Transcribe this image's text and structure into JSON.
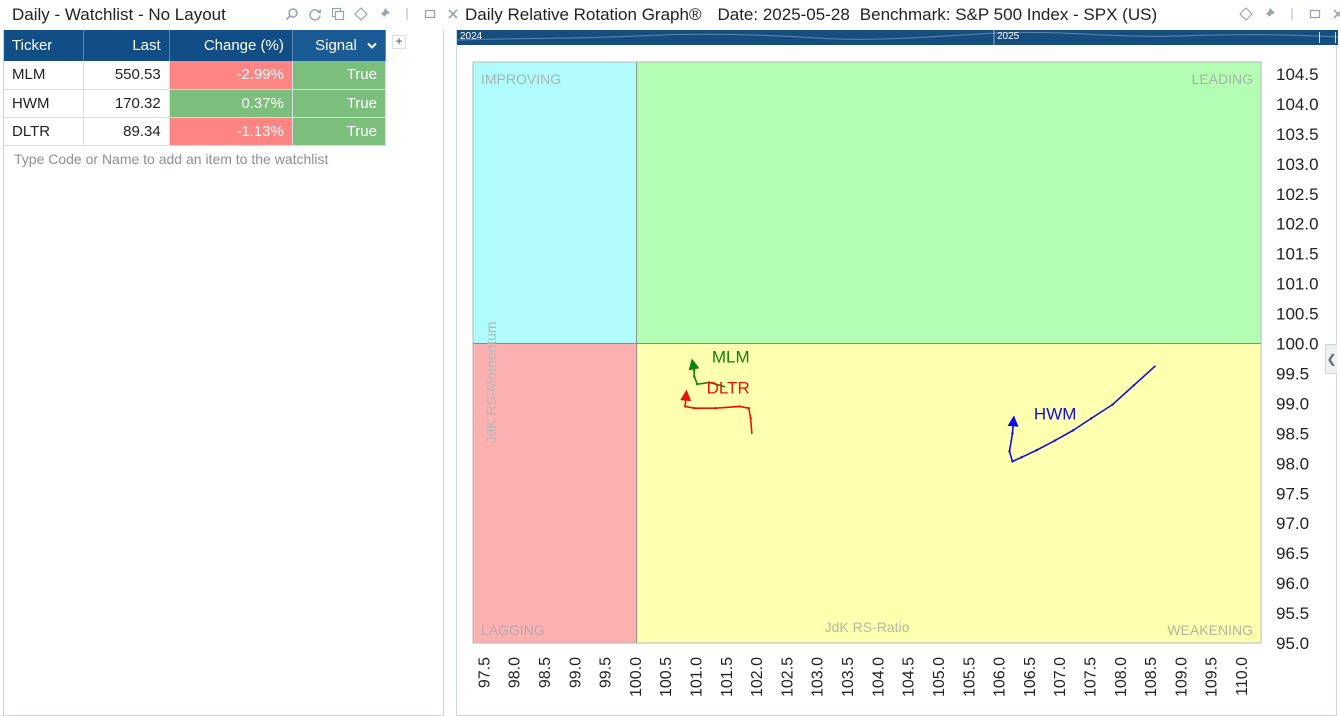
{
  "watchlist": {
    "title": "Daily - Watchlist - No Layout",
    "title_icons": [
      "search-icon",
      "refresh-icon",
      "copy-icon",
      "diamond-icon",
      "pin-icon",
      "detach-icon",
      "maximize-icon",
      "close-icon"
    ],
    "columns": {
      "ticker": "Ticker",
      "last": "Last",
      "change": "Change (%)",
      "signal": "Signal"
    },
    "rows": [
      {
        "ticker": "MLM",
        "last": "550.53",
        "change": "-2.99%",
        "signal": "True",
        "direction": "down"
      },
      {
        "ticker": "HWM",
        "last": "170.32",
        "change": "0.37%",
        "signal": "True",
        "direction": "up"
      },
      {
        "ticker": "DLTR",
        "last": "89.34",
        "change": "-1.13%",
        "signal": "True",
        "direction": "down"
      }
    ],
    "add_hint": "Type Code or Name to add an item to the watchlist",
    "add_column_symbol": "+"
  },
  "rrg": {
    "title": "Daily Relative Rotation Graph®",
    "date_label": "Date: 2025-05-28",
    "benchmark_label": "Benchmark: S&P 500 Index - SPX (US)",
    "title_icons": [
      "diamond-icon",
      "pin-icon",
      "maximize-icon",
      "close-icon"
    ],
    "timeline": {
      "start_year": "2024",
      "end_year": "2025"
    },
    "collapse_symbol": "❮"
  },
  "colors": {
    "header_blue": "#114e86",
    "negative": "#ff8585",
    "positive": "#7cbf7c",
    "improving": "#b0fcfc",
    "leading": "#b4feb4",
    "lagging": "#fdb0b0",
    "weakening": "#ffffb0"
  },
  "chart_data": {
    "type": "scatter",
    "title": "Daily Relative Rotation Graph®",
    "xlabel": "JdK RS-Ratio",
    "ylabel": "JdK RS-Momentum",
    "xlim": [
      97.3,
      110.3
    ],
    "ylim": [
      95.0,
      104.7
    ],
    "center": [
      100.0,
      100.0
    ],
    "x_ticks": [
      "97.5",
      "98.0",
      "98.5",
      "99.0",
      "99.5",
      "100.0",
      "100.5",
      "101.0",
      "101.5",
      "102.0",
      "102.5",
      "103.0",
      "103.5",
      "104.0",
      "104.5",
      "105.0",
      "105.5",
      "106.0",
      "106.5",
      "107.0",
      "107.5",
      "108.0",
      "108.5",
      "109.0",
      "109.5",
      "110.0"
    ],
    "y_ticks": [
      "104.5",
      "104.0",
      "103.5",
      "103.0",
      "102.5",
      "102.0",
      "101.5",
      "101.0",
      "100.5",
      "100.0",
      "99.5",
      "99.0",
      "98.5",
      "98.0",
      "97.5",
      "97.0",
      "96.5",
      "96.0",
      "95.5",
      "95.0"
    ],
    "quadrants": {
      "improving": "IMPROVING",
      "leading": "LEADING",
      "lagging": "LAGGING",
      "weakening": "WEAKENING"
    },
    "grid": false,
    "series": [
      {
        "name": "MLM",
        "color": "#108010",
        "x": [
          101.45,
          101.2,
          101.0,
          100.95,
          100.95,
          100.92
        ],
        "y": [
          99.28,
          99.35,
          99.32,
          99.45,
          99.55,
          99.7
        ]
      },
      {
        "name": "DLTR",
        "color": "#ee1010",
        "x": [
          101.9,
          101.88,
          101.85,
          101.7,
          101.3,
          100.95,
          100.8,
          100.82
        ],
        "y": [
          98.5,
          98.75,
          98.92,
          98.95,
          98.92,
          98.92,
          98.95,
          99.18
        ]
      },
      {
        "name": "HWM",
        "color": "#1010dd",
        "x": [
          108.55,
          108.2,
          107.85,
          107.5,
          107.2,
          106.9,
          106.6,
          106.35,
          106.2,
          106.15,
          106.2,
          106.22
        ],
        "y": [
          99.62,
          99.3,
          98.98,
          98.75,
          98.55,
          98.38,
          98.22,
          98.1,
          98.03,
          98.2,
          98.5,
          98.75
        ]
      }
    ]
  }
}
